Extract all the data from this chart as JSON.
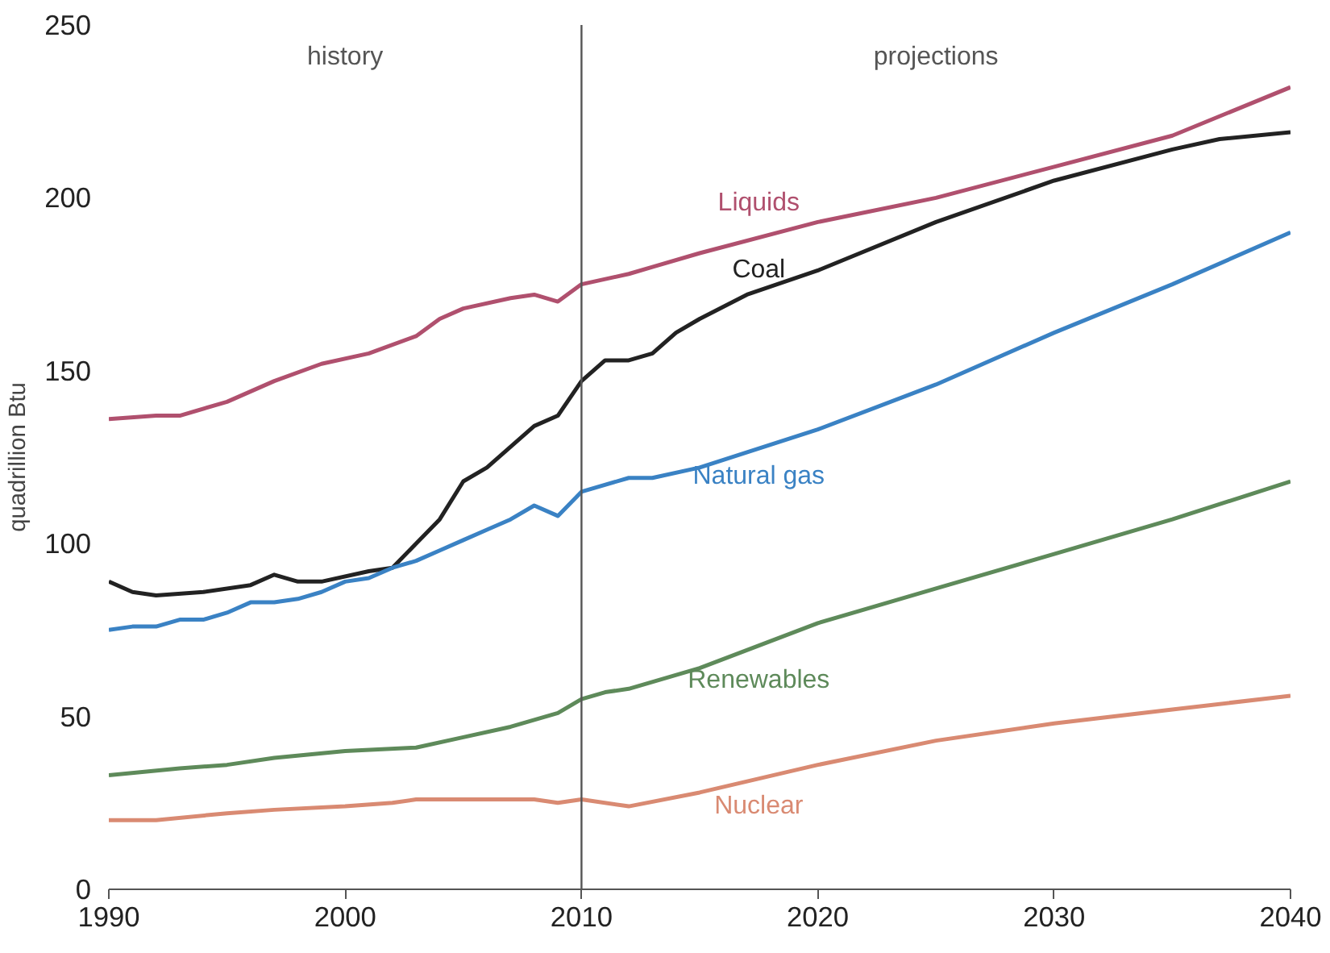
{
  "chart_data": {
    "type": "line",
    "ylabel": "quadrillion Btu",
    "xlim": [
      1990,
      2040
    ],
    "ylim": [
      0,
      250
    ],
    "xticks": [
      1990,
      2000,
      2010,
      2020,
      2030,
      2040
    ],
    "yticks": [
      0,
      50,
      100,
      150,
      200,
      250
    ],
    "grid": false,
    "legend": false,
    "line_style": "solid",
    "marker": "none",
    "series": [
      {
        "name": "Liquids",
        "color": "#b0506e",
        "x": [
          1990,
          1992,
          1993,
          1995,
          1997,
          1999,
          2001,
          2003,
          2004,
          2005,
          2007,
          2008,
          2009,
          2010,
          2012,
          2013,
          2015,
          2020,
          2025,
          2030,
          2035,
          2040
        ],
        "values": [
          136,
          137,
          137,
          141,
          147,
          152,
          155,
          160,
          165,
          168,
          171,
          172,
          170,
          175,
          178,
          180,
          184,
          193,
          200,
          209,
          218,
          232
        ]
      },
      {
        "name": "Coal",
        "color": "#222222",
        "x": [
          1990,
          1991,
          1992,
          1994,
          1996,
          1997,
          1998,
          1999,
          2001,
          2002,
          2003,
          2004,
          2005,
          2006,
          2007,
          2008,
          2009,
          2010,
          2011,
          2012,
          2013,
          2014,
          2015,
          2017,
          2020,
          2025,
          2030,
          2035,
          2037,
          2040
        ],
        "values": [
          89,
          86,
          85,
          86,
          88,
          91,
          89,
          89,
          92,
          93,
          100,
          107,
          118,
          122,
          128,
          134,
          137,
          147,
          153,
          153,
          155,
          161,
          165,
          172,
          179,
          193,
          205,
          214,
          217,
          219
        ]
      },
      {
        "name": "Natural gas",
        "color": "#3a82c4",
        "x": [
          1990,
          1991,
          1992,
          1993,
          1994,
          1995,
          1996,
          1997,
          1998,
          1999,
          2000,
          2001,
          2002,
          2003,
          2004,
          2005,
          2006,
          2007,
          2008,
          2009,
          2010,
          2012,
          2013,
          2015,
          2020,
          2025,
          2030,
          2035,
          2040
        ],
        "values": [
          75,
          76,
          76,
          78,
          78,
          80,
          83,
          83,
          84,
          86,
          89,
          90,
          93,
          95,
          98,
          101,
          104,
          107,
          111,
          108,
          115,
          119,
          119,
          122,
          133,
          146,
          161,
          175,
          190
        ]
      },
      {
        "name": "Renewables",
        "color": "#5e8a5a",
        "x": [
          1990,
          1993,
          1995,
          1997,
          2000,
          2003,
          2005,
          2007,
          2008,
          2009,
          2010,
          2011,
          2012,
          2015,
          2020,
          2025,
          2030,
          2035,
          2040
        ],
        "values": [
          33,
          35,
          36,
          38,
          40,
          41,
          44,
          47,
          49,
          51,
          55,
          57,
          58,
          64,
          77,
          87,
          97,
          107,
          118
        ]
      },
      {
        "name": "Nuclear",
        "color": "#d98a72",
        "x": [
          1990,
          1992,
          1995,
          1997,
          2000,
          2002,
          2003,
          2005,
          2008,
          2009,
          2010,
          2012,
          2015,
          2020,
          2025,
          2030,
          2035,
          2040
        ],
        "values": [
          20,
          20,
          22,
          23,
          24,
          25,
          26,
          26,
          26,
          25,
          26,
          24,
          28,
          36,
          43,
          48,
          52,
          56
        ]
      }
    ],
    "ref_lines": [
      {
        "axis": "x",
        "value": 2010,
        "color": "#555555",
        "line_style": "solid"
      }
    ],
    "annotations": [
      "history",
      "projections"
    ]
  }
}
